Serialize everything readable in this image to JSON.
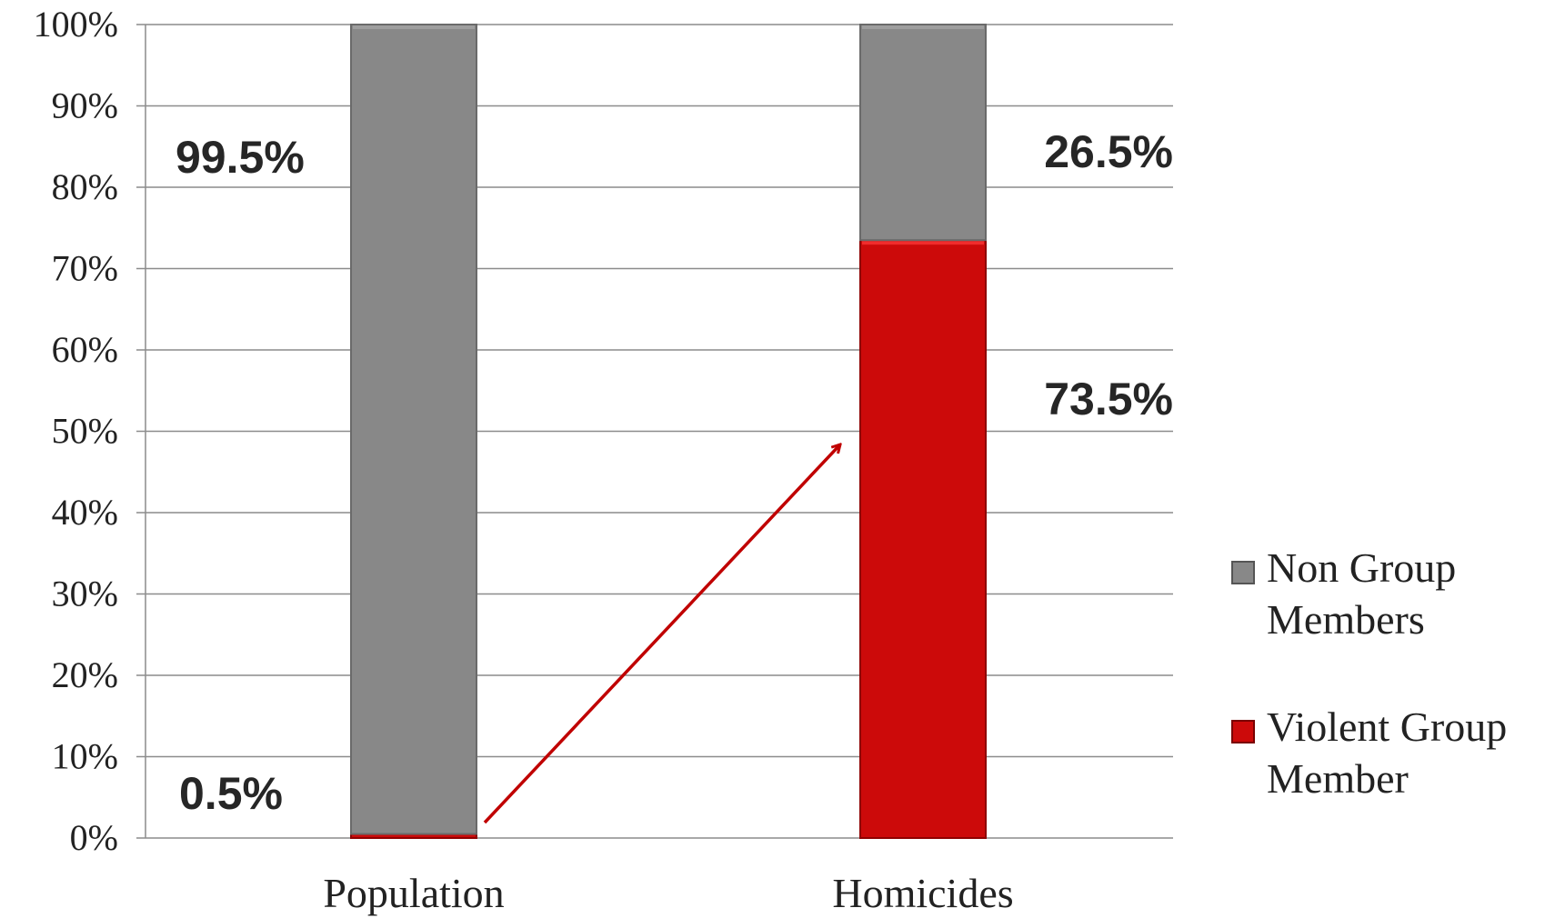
{
  "chart_data": {
    "type": "bar",
    "stacked": true,
    "categories": [
      "Population",
      "Homicides"
    ],
    "series": [
      {
        "name": "Violent Group Member",
        "values": [
          0.5,
          73.5
        ],
        "data_labels": [
          "0.5%",
          "73.5%"
        ],
        "color": "#cc0a0a"
      },
      {
        "name": "Non Group Members",
        "values": [
          99.5,
          26.5
        ],
        "data_labels": [
          "99.5%",
          "26.5%"
        ],
        "color": "#888888"
      }
    ],
    "yticks": [
      "0%",
      "10%",
      "20%",
      "30%",
      "40%",
      "50%",
      "60%",
      "70%",
      "80%",
      "90%",
      "100%"
    ],
    "ylim": [
      0,
      100
    ],
    "grid": true,
    "legend": {
      "position": "right",
      "entries": [
        {
          "series": "Non Group Members",
          "lines": [
            "Non Group",
            "Members"
          ]
        },
        {
          "series": "Violent Group Member",
          "lines": [
            "Violent Group",
            "Member"
          ]
        }
      ]
    },
    "annotation": "arrow from Population to Homicides"
  }
}
